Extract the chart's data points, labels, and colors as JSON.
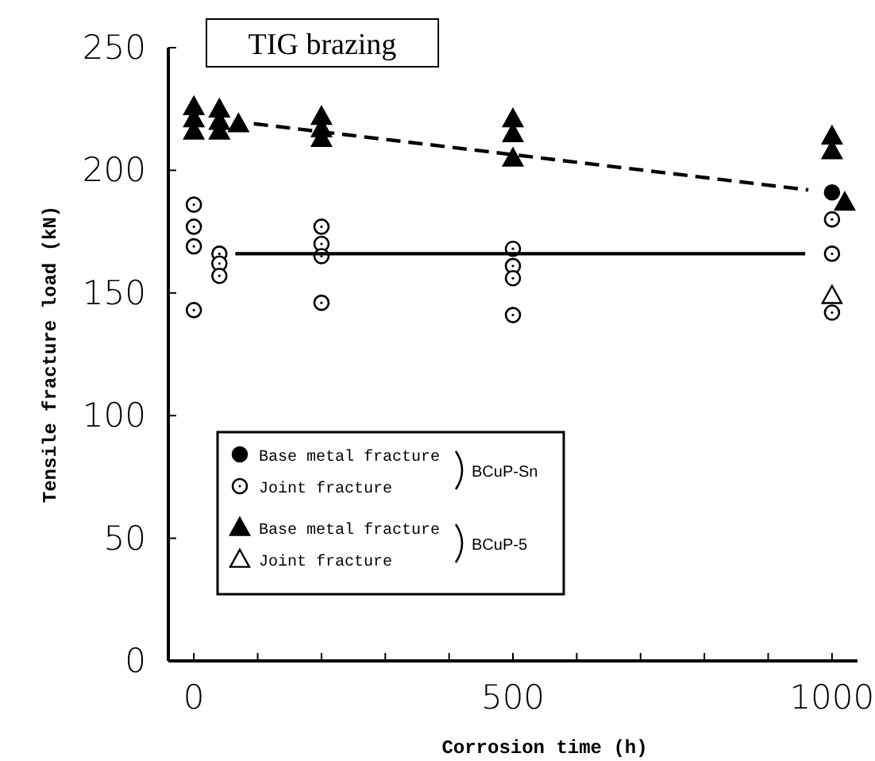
{
  "chart_data": {
    "type": "scatter",
    "title": "TIG brazing",
    "xlabel": "Corrosion time (h)",
    "ylabel": "Tensile fracture load (kN)",
    "xlim": [
      -40,
      1040
    ],
    "ylim": [
      0,
      250
    ],
    "xticks": [
      0,
      {
        "value": 100,
        "label": null
      },
      {
        "value": 200,
        "label": null
      },
      {
        "value": 300,
        "label": null
      },
      {
        "value": 400,
        "label": null
      },
      500,
      {
        "value": 600,
        "label": null
      },
      {
        "value": 700,
        "label": null
      },
      {
        "value": 800,
        "label": null
      },
      {
        "value": 900,
        "label": null
      },
      1000
    ],
    "yticks": [
      0,
      50,
      100,
      150,
      200,
      250
    ],
    "grid": false,
    "legend": "bottom left",
    "annotations": [
      "BCuP-Sn",
      "BCuP-5"
    ],
    "series": [
      {
        "name": "Base metal fracture",
        "color": "#000000",
        "marker": "circle",
        "x": [
          1000
        ],
        "values": [
          191
        ]
      },
      {
        "name": "Joint fracture",
        "color": "#ffffff",
        "marker": "circle",
        "x": [
          0,
          0,
          0,
          0,
          40,
          40,
          40,
          200,
          200,
          200,
          200,
          500,
          500,
          500,
          500,
          1000,
          1000,
          1000
        ],
        "values": [
          186,
          177,
          169,
          143,
          166,
          162,
          157,
          177,
          170,
          165,
          146,
          168,
          161,
          156,
          141,
          180,
          166,
          142
        ]
      },
      {
        "name": "Base metal fracture",
        "color": "#000000",
        "marker": "triangle",
        "x": [
          0,
          0,
          0,
          40,
          40,
          40,
          70,
          200,
          200,
          200,
          500,
          500,
          500,
          1000,
          1000,
          1020
        ],
        "values": [
          226,
          221,
          216,
          225,
          220,
          216,
          219,
          222,
          217,
          213,
          221,
          215,
          205,
          214,
          208,
          187
        ]
      },
      {
        "name": "Joint fracture",
        "color": "#ffffff",
        "marker": "triangle",
        "x": [
          1000
        ],
        "values": [
          149
        ]
      },
      {
        "type": "line",
        "color": "#000000",
        "line_style": "dashed",
        "x": [
          94,
          963
        ],
        "values": [
          219,
          192
        ]
      },
      {
        "type": "line",
        "color": "#000000",
        "line_style": "solid",
        "x": [
          65,
          958
        ],
        "values": [
          166,
          166
        ]
      }
    ]
  }
}
